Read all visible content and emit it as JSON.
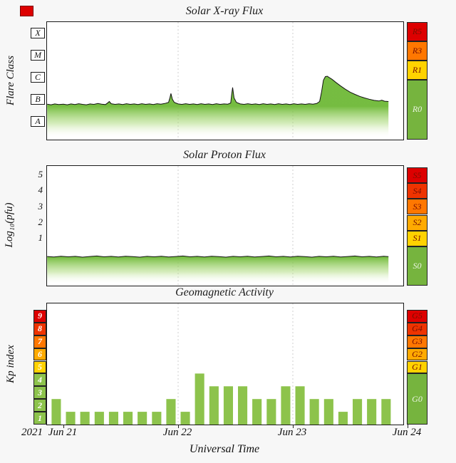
{
  "x_axis": {
    "year_label": "2021",
    "axis_title": "Universal Time",
    "tick_labels": [
      "Jun 21",
      "Jun 22",
      "Jun 23",
      "Jun 24"
    ],
    "tick_hours": [
      0,
      24,
      48,
      72
    ]
  },
  "colors": {
    "red": "#dd0000",
    "red_orange": "#ee3300",
    "orange": "#ff7700",
    "amber": "#ffaa00",
    "yellow": "#ffd200",
    "green_box": "#76b43e",
    "bar_green": "#8dc34c",
    "line": "#111111",
    "fill_top": "rgba(110,185,55,0.95)",
    "fill_mid": "rgba(165,215,110,0.45)",
    "fill_bottom": "rgba(255,255,255,0)"
  },
  "chart_data": [
    {
      "id": "xray",
      "type": "area",
      "title": "Solar X-ray Flux",
      "ylabel": "Flare Class",
      "y_range": [
        -0.3,
        5
      ],
      "grid_hours": [
        24,
        48
      ],
      "fill_fade_from": 1.2,
      "class_letters": [
        {
          "label": "X",
          "v": 4.5
        },
        {
          "label": "M",
          "v": 3.5
        },
        {
          "label": "C",
          "v": 2.5
        },
        {
          "label": "B",
          "v": 1.5
        },
        {
          "label": "A",
          "v": 0.5
        }
      ],
      "right_scale": [
        {
          "label": "R5",
          "v_top": 5.0,
          "v_bottom": 4.13,
          "color": "red"
        },
        {
          "label": "R3",
          "v_top": 4.13,
          "v_bottom": 3.26,
          "color": "orange"
        },
        {
          "label": "R1",
          "v_top": 3.26,
          "v_bottom": 2.4,
          "color": "yellow"
        },
        {
          "label": "R0",
          "v_top": 2.4,
          "v_bottom": -0.3,
          "color": "green_box"
        }
      ],
      "series": {
        "name": "goes-xray-flux-decades-above-1e-8",
        "points": [
          [
            -3.4,
            1.3
          ],
          [
            -2.6,
            1.27
          ],
          [
            -1.8,
            1.31
          ],
          [
            -1.0,
            1.28
          ],
          [
            0,
            1.3
          ],
          [
            0.8,
            1.27
          ],
          [
            1.6,
            1.31
          ],
          [
            2.4,
            1.28
          ],
          [
            3.2,
            1.32
          ],
          [
            4.0,
            1.29
          ],
          [
            4.8,
            1.27
          ],
          [
            5.6,
            1.31
          ],
          [
            6.4,
            1.29
          ],
          [
            7.2,
            1.33
          ],
          [
            8.0,
            1.3
          ],
          [
            8.8,
            1.28
          ],
          [
            9.3,
            1.36
          ],
          [
            9.6,
            1.42
          ],
          [
            10.0,
            1.32
          ],
          [
            10.8,
            1.29
          ],
          [
            11.6,
            1.31
          ],
          [
            12.4,
            1.28
          ],
          [
            13.2,
            1.32
          ],
          [
            14.0,
            1.29
          ],
          [
            14.8,
            1.31
          ],
          [
            15.6,
            1.28
          ],
          [
            16.4,
            1.32
          ],
          [
            17.2,
            1.29
          ],
          [
            18.0,
            1.31
          ],
          [
            18.8,
            1.28
          ],
          [
            19.6,
            1.32
          ],
          [
            20.4,
            1.3
          ],
          [
            21.2,
            1.33
          ],
          [
            22.0,
            1.38
          ],
          [
            22.3,
            1.6
          ],
          [
            22.5,
            1.78
          ],
          [
            22.8,
            1.52
          ],
          [
            23.2,
            1.38
          ],
          [
            24.0,
            1.31
          ],
          [
            24.8,
            1.29
          ],
          [
            25.6,
            1.32
          ],
          [
            26.4,
            1.29
          ],
          [
            27.2,
            1.31
          ],
          [
            28.0,
            1.28
          ],
          [
            28.8,
            1.32
          ],
          [
            29.6,
            1.29
          ],
          [
            30.4,
            1.31
          ],
          [
            31.2,
            1.28
          ],
          [
            32.0,
            1.32
          ],
          [
            32.8,
            1.29
          ],
          [
            33.6,
            1.31
          ],
          [
            34.4,
            1.3
          ],
          [
            35.0,
            1.35
          ],
          [
            35.2,
            1.72
          ],
          [
            35.4,
            2.05
          ],
          [
            35.7,
            1.58
          ],
          [
            36.2,
            1.38
          ],
          [
            37.0,
            1.31
          ],
          [
            37.8,
            1.29
          ],
          [
            38.6,
            1.32
          ],
          [
            39.4,
            1.29
          ],
          [
            40.2,
            1.31
          ],
          [
            41.0,
            1.28
          ],
          [
            41.8,
            1.32
          ],
          [
            42.6,
            1.29
          ],
          [
            43.4,
            1.31
          ],
          [
            44.2,
            1.28
          ],
          [
            45.0,
            1.32
          ],
          [
            45.8,
            1.29
          ],
          [
            46.6,
            1.31
          ],
          [
            47.4,
            1.28
          ],
          [
            48.2,
            1.32
          ],
          [
            49.0,
            1.29
          ],
          [
            49.8,
            1.31
          ],
          [
            50.6,
            1.29
          ],
          [
            51.4,
            1.32
          ],
          [
            52.2,
            1.3
          ],
          [
            53.0,
            1.33
          ],
          [
            53.6,
            1.42
          ],
          [
            54.0,
            1.85
          ],
          [
            54.4,
            2.38
          ],
          [
            54.8,
            2.54
          ],
          [
            55.2,
            2.56
          ],
          [
            55.6,
            2.5
          ],
          [
            56.2,
            2.42
          ],
          [
            57.0,
            2.28
          ],
          [
            58.0,
            2.12
          ],
          [
            59.0,
            1.97
          ],
          [
            60.0,
            1.84
          ],
          [
            61.0,
            1.74
          ],
          [
            62.0,
            1.65
          ],
          [
            63.0,
            1.58
          ],
          [
            64.0,
            1.52
          ],
          [
            65.0,
            1.47
          ],
          [
            66.0,
            1.44
          ],
          [
            66.6,
            1.48
          ],
          [
            67.2,
            1.43
          ],
          [
            68.0,
            1.42
          ]
        ]
      }
    },
    {
      "id": "proton",
      "type": "area",
      "title": "Solar Proton Flux",
      "ylabel": "Log₁₀(pfu)",
      "y_range": [
        -2,
        5.6
      ],
      "grid_hours": [
        24,
        48
      ],
      "fill_fade_from": -0.2,
      "y_ticks": [
        5,
        4,
        3,
        2,
        1
      ],
      "right_scale": [
        {
          "label": "S5",
          "v_top": 5.5,
          "v_bottom": 4.5,
          "color": "red"
        },
        {
          "label": "S4",
          "v_top": 4.5,
          "v_bottom": 3.5,
          "color": "red_orange"
        },
        {
          "label": "S3",
          "v_top": 3.5,
          "v_bottom": 2.5,
          "color": "orange"
        },
        {
          "label": "S2",
          "v_top": 2.5,
          "v_bottom": 1.5,
          "color": "amber"
        },
        {
          "label": "S1",
          "v_top": 1.5,
          "v_bottom": 0.5,
          "color": "yellow"
        },
        {
          "label": "S0",
          "v_top": 0.5,
          "v_bottom": -2,
          "color": "green_box"
        }
      ],
      "series": {
        "name": "proton-flux-log10-pfu",
        "points": [
          [
            -3.4,
            -0.15
          ],
          [
            -2,
            -0.18
          ],
          [
            -0.5,
            -0.13
          ],
          [
            1,
            -0.17
          ],
          [
            2.5,
            -0.14
          ],
          [
            4,
            -0.19
          ],
          [
            5.5,
            -0.15
          ],
          [
            7,
            -0.12
          ],
          [
            8.5,
            -0.17
          ],
          [
            10,
            -0.14
          ],
          [
            11.5,
            -0.18
          ],
          [
            13,
            -0.13
          ],
          [
            14.5,
            -0.16
          ],
          [
            16,
            -0.19
          ],
          [
            17.5,
            -0.14
          ],
          [
            19,
            -0.17
          ],
          [
            20.5,
            -0.13
          ],
          [
            22,
            -0.18
          ],
          [
            23.5,
            -0.15
          ],
          [
            25,
            -0.12
          ],
          [
            26.5,
            -0.17
          ],
          [
            28,
            -0.14
          ],
          [
            29.5,
            -0.18
          ],
          [
            31,
            -0.13
          ],
          [
            32.5,
            -0.16
          ],
          [
            34,
            -0.19
          ],
          [
            35.5,
            -0.14
          ],
          [
            37,
            -0.17
          ],
          [
            38.5,
            -0.13
          ],
          [
            40,
            -0.18
          ],
          [
            41.5,
            -0.15
          ],
          [
            43,
            -0.12
          ],
          [
            44.5,
            -0.17
          ],
          [
            46,
            -0.14
          ],
          [
            47.5,
            -0.18
          ],
          [
            49,
            -0.13
          ],
          [
            50.5,
            -0.16
          ],
          [
            52,
            -0.19
          ],
          [
            53.5,
            -0.14
          ],
          [
            55,
            -0.17
          ],
          [
            56.5,
            -0.13
          ],
          [
            58,
            -0.18
          ],
          [
            59.5,
            -0.15
          ],
          [
            61,
            -0.12
          ],
          [
            62.5,
            -0.17
          ],
          [
            64,
            -0.14
          ],
          [
            65.5,
            -0.18
          ],
          [
            67,
            -0.13
          ],
          [
            68,
            -0.16
          ]
        ]
      }
    },
    {
      "id": "kp",
      "type": "bar",
      "title": "Geomagnetic Activity",
      "ylabel": "Kp index",
      "y_range": [
        0,
        9.5
      ],
      "grid_hours": [
        24,
        48
      ],
      "bar_width_hours": 3,
      "bar_start_hours": [
        -3,
        0,
        3,
        6,
        9,
        12,
        15,
        18,
        21,
        24,
        27,
        30,
        33,
        36,
        39,
        42,
        45,
        48,
        51,
        54,
        57,
        60,
        63,
        66
      ],
      "bar_values": [
        2,
        1,
        1,
        1,
        1,
        1,
        1,
        1,
        2,
        1,
        4,
        3,
        3,
        3,
        2,
        2,
        3,
        3,
        2,
        2,
        1,
        2,
        2,
        2
      ],
      "left_scale": [
        {
          "label": "9",
          "v_top": 9,
          "v_bottom": 8,
          "color": "red"
        },
        {
          "label": "8",
          "v_top": 8,
          "v_bottom": 7,
          "color": "red_orange"
        },
        {
          "label": "7",
          "v_top": 7,
          "v_bottom": 6,
          "color": "orange"
        },
        {
          "label": "6",
          "v_top": 6,
          "v_bottom": 5,
          "color": "amber"
        },
        {
          "label": "5",
          "v_top": 5,
          "v_bottom": 4,
          "color": "yellow"
        },
        {
          "label": "4",
          "v_top": 4,
          "v_bottom": 3,
          "color": "bar_green"
        },
        {
          "label": "3",
          "v_top": 3,
          "v_bottom": 2,
          "color": "bar_green"
        },
        {
          "label": "2",
          "v_top": 2,
          "v_bottom": 1,
          "color": "bar_green"
        },
        {
          "label": "1",
          "v_top": 1,
          "v_bottom": 0,
          "color": "bar_green"
        }
      ],
      "right_scale": [
        {
          "label": "G5",
          "v_top": 9,
          "v_bottom": 8,
          "color": "red"
        },
        {
          "label": "G4",
          "v_top": 8,
          "v_bottom": 7,
          "color": "red_orange"
        },
        {
          "label": "G3",
          "v_top": 7,
          "v_bottom": 6,
          "color": "orange"
        },
        {
          "label": "G2",
          "v_top": 6,
          "v_bottom": 5,
          "color": "amber"
        },
        {
          "label": "G1",
          "v_top": 5,
          "v_bottom": 4,
          "color": "yellow"
        },
        {
          "label": "G0",
          "v_top": 4,
          "v_bottom": 0,
          "color": "green_box"
        }
      ]
    }
  ]
}
